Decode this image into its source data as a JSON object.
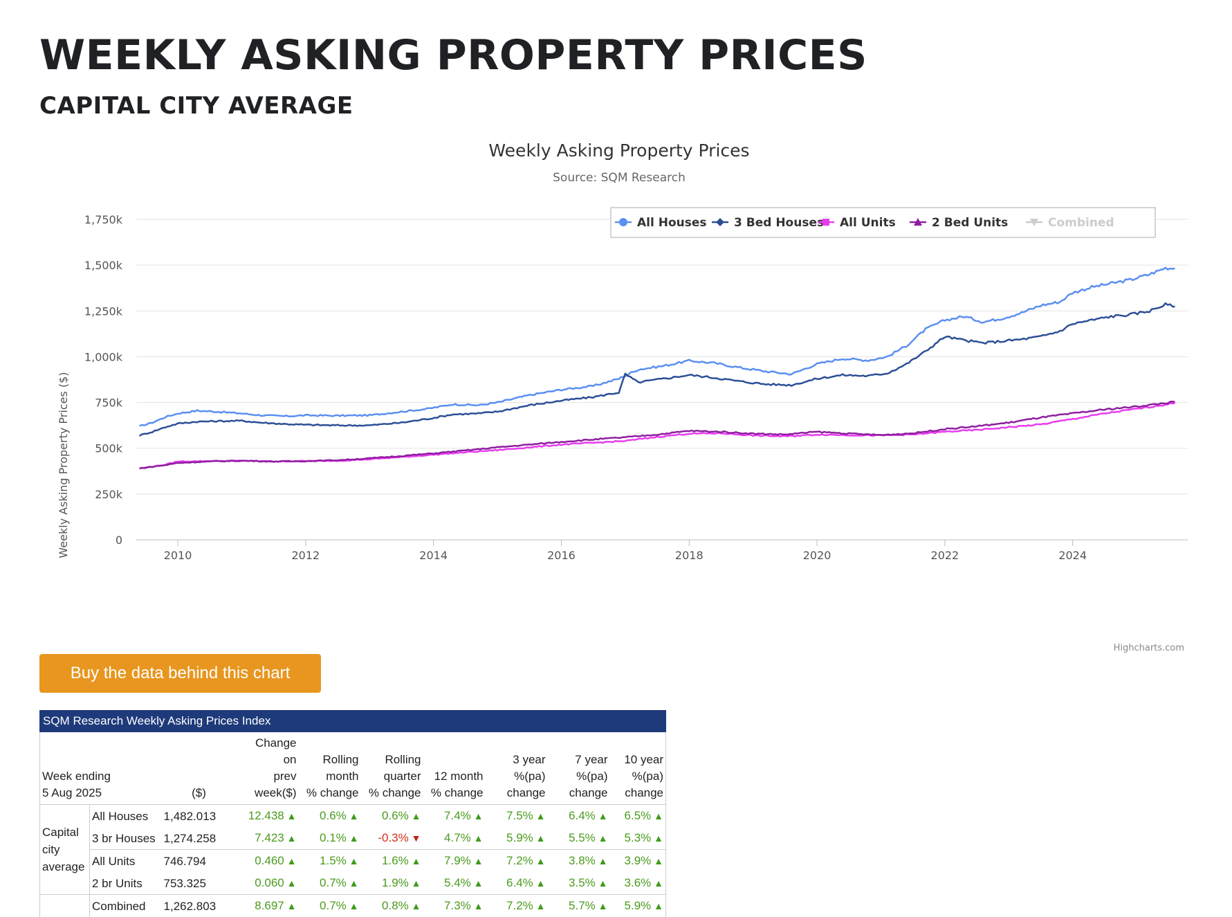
{
  "header": {
    "title": "WEEKLY ASKING PROPERTY PRICES",
    "subtitle": "CAPITAL CITY AVERAGE"
  },
  "chart_data": {
    "type": "line",
    "title": "Weekly Asking Property Prices",
    "subtitle": "Source: SQM Research",
    "ylabel": "Weekly Asking Property Prices ($)",
    "xlabel": "",
    "ylim": [
      0,
      1750000
    ],
    "xlim": [
      2009.35,
      2025.8
    ],
    "y_ticks": [
      0,
      250000,
      500000,
      750000,
      1000000,
      1250000,
      1500000,
      1750000
    ],
    "y_tick_labels": [
      "0",
      "250k",
      "500k",
      "750k",
      "1,000k",
      "1,250k",
      "1,500k",
      "1,750k"
    ],
    "x_ticks": [
      2010,
      2012,
      2014,
      2016,
      2018,
      2020,
      2022,
      2024
    ],
    "x_tick_labels": [
      "2010",
      "2012",
      "2014",
      "2016",
      "2018",
      "2020",
      "2022",
      "2024"
    ],
    "legend_position": "top-right",
    "grid": true,
    "credit": "Highcharts.com",
    "series": [
      {
        "name": "All Houses",
        "color": "#5b8ff0",
        "marker": "circle",
        "visible": true,
        "x": [
          2009.4,
          2009.6,
          2009.8,
          2010.0,
          2010.3,
          2010.6,
          2011.0,
          2011.3,
          2011.7,
          2012.0,
          2012.5,
          2013.0,
          2013.5,
          2013.9,
          2014.3,
          2014.7,
          2015.0,
          2015.5,
          2016.0,
          2016.5,
          2016.9,
          2017.2,
          2017.6,
          2018.0,
          2018.4,
          2018.8,
          2019.2,
          2019.6,
          2020.0,
          2020.4,
          2020.8,
          2021.1,
          2021.4,
          2021.7,
          2022.0,
          2022.3,
          2022.6,
          2022.9,
          2023.2,
          2023.5,
          2023.8,
          2024.0,
          2024.3,
          2024.6,
          2024.9,
          2025.2,
          2025.45,
          2025.6
        ],
        "values": [
          620000,
          640000,
          670000,
          690000,
          705000,
          700000,
          690000,
          680000,
          675000,
          680000,
          678000,
          680000,
          700000,
          715000,
          740000,
          735000,
          750000,
          790000,
          820000,
          840000,
          880000,
          930000,
          950000,
          978000,
          965000,
          940000,
          920000,
          905000,
          960000,
          990000,
          980000,
          1000000,
          1060000,
          1150000,
          1200000,
          1220000,
          1190000,
          1210000,
          1240000,
          1280000,
          1300000,
          1350000,
          1380000,
          1400000,
          1420000,
          1450000,
          1485000,
          1482013
        ]
      },
      {
        "name": "3 Bed Houses",
        "color": "#2c4f96",
        "marker": "diamond",
        "visible": true,
        "x": [
          2009.4,
          2009.6,
          2009.8,
          2010.0,
          2010.3,
          2010.6,
          2011.0,
          2011.3,
          2011.7,
          2012.0,
          2012.5,
          2013.0,
          2013.5,
          2013.9,
          2014.3,
          2014.7,
          2015.0,
          2015.5,
          2016.0,
          2016.5,
          2016.9,
          2017.0,
          2017.2,
          2017.6,
          2018.0,
          2018.4,
          2018.8,
          2019.2,
          2019.6,
          2020.0,
          2020.4,
          2020.8,
          2021.1,
          2021.4,
          2021.7,
          2022.0,
          2022.3,
          2022.6,
          2022.9,
          2023.2,
          2023.5,
          2023.8,
          2024.0,
          2024.3,
          2024.6,
          2024.9,
          2025.2,
          2025.45,
          2025.6
        ],
        "values": [
          570000,
          590000,
          615000,
          635000,
          645000,
          648000,
          650000,
          640000,
          632000,
          628000,
          625000,
          625000,
          640000,
          660000,
          685000,
          690000,
          700000,
          735000,
          760000,
          780000,
          805000,
          905000,
          860000,
          880000,
          900000,
          885000,
          865000,
          850000,
          845000,
          880000,
          900000,
          895000,
          910000,
          960000,
          1030000,
          1110000,
          1090000,
          1075000,
          1085000,
          1095000,
          1110000,
          1140000,
          1180000,
          1200000,
          1220000,
          1230000,
          1250000,
          1285000,
          1274258
        ]
      },
      {
        "name": "All Units",
        "color": "#e83cf0",
        "marker": "square",
        "visible": true,
        "x": [
          2009.4,
          2009.8,
          2010.0,
          2010.5,
          2011.0,
          2011.5,
          2012.0,
          2012.5,
          2013.0,
          2013.5,
          2014.0,
          2014.5,
          2015.0,
          2015.5,
          2016.0,
          2016.5,
          2017.0,
          2017.5,
          2018.0,
          2018.5,
          2019.0,
          2019.5,
          2020.0,
          2020.5,
          2021.0,
          2021.5,
          2022.0,
          2022.5,
          2023.0,
          2023.5,
          2024.0,
          2024.5,
          2025.0,
          2025.6
        ],
        "values": [
          390000,
          410000,
          428000,
          430000,
          432000,
          428000,
          430000,
          432000,
          440000,
          452000,
          465000,
          478000,
          490000,
          505000,
          520000,
          530000,
          540000,
          562000,
          580000,
          582000,
          570000,
          565000,
          575000,
          572000,
          570000,
          575000,
          590000,
          600000,
          615000,
          630000,
          660000,
          690000,
          715000,
          746794
        ]
      },
      {
        "name": "2 Bed Units",
        "color": "#8f1ea0",
        "marker": "triangle",
        "visible": true,
        "x": [
          2009.4,
          2009.8,
          2010.0,
          2010.5,
          2011.0,
          2011.5,
          2012.0,
          2012.5,
          2013.0,
          2013.5,
          2014.0,
          2014.5,
          2015.0,
          2015.5,
          2016.0,
          2016.5,
          2017.0,
          2017.5,
          2018.0,
          2018.5,
          2019.0,
          2019.5,
          2020.0,
          2020.5,
          2021.0,
          2021.5,
          2022.0,
          2022.5,
          2023.0,
          2023.5,
          2024.0,
          2024.5,
          2025.0,
          2025.6
        ],
        "values": [
          390000,
          408000,
          420000,
          428000,
          432000,
          428000,
          430000,
          435000,
          445000,
          458000,
          472000,
          488000,
          505000,
          520000,
          535000,
          548000,
          560000,
          575000,
          595000,
          590000,
          580000,
          575000,
          590000,
          580000,
          572000,
          582000,
          605000,
          620000,
          640000,
          668000,
          690000,
          712000,
          728000,
          753325
        ]
      },
      {
        "name": "Combined",
        "color": "#cccccc",
        "marker": "triangle-down",
        "visible": false,
        "x": [],
        "values": []
      }
    ]
  },
  "buy_button": {
    "label": "Buy the data behind this chart"
  },
  "table": {
    "caption": "SQM Research Weekly Asking Prices Index",
    "week_label": "Week ending",
    "week_date": "5 Aug 2025",
    "price_header": "($)",
    "headers": [
      [
        "Change",
        "on",
        "prev",
        "week($)"
      ],
      [
        "Rolling",
        "month",
        "% change"
      ],
      [
        "Rolling",
        "quarter",
        "% change"
      ],
      [
        "12 month",
        "% change"
      ],
      [
        "3 year",
        "%(pa)",
        "change"
      ],
      [
        "7 year",
        "%(pa)",
        "change"
      ],
      [
        "10 year",
        "%(pa)",
        "change"
      ]
    ],
    "region": [
      "Capital",
      "city",
      "average"
    ],
    "rows": [
      {
        "name": "All Houses",
        "price": "1,482.013",
        "cells": [
          [
            "12.438",
            "up"
          ],
          [
            "0.6%",
            "up"
          ],
          [
            "0.6%",
            "up"
          ],
          [
            "7.4%",
            "up"
          ],
          [
            "7.5%",
            "up"
          ],
          [
            "6.4%",
            "up"
          ],
          [
            "6.5%",
            "up"
          ]
        ]
      },
      {
        "name": "3 br Houses",
        "price": "1,274.258",
        "cells": [
          [
            "7.423",
            "up"
          ],
          [
            "0.1%",
            "up"
          ],
          [
            "-0.3%",
            "down"
          ],
          [
            "4.7%",
            "up"
          ],
          [
            "5.9%",
            "up"
          ],
          [
            "5.5%",
            "up"
          ],
          [
            "5.3%",
            "up"
          ]
        ]
      },
      {
        "name": "All Units",
        "price": "746.794",
        "cells": [
          [
            "0.460",
            "up"
          ],
          [
            "1.5%",
            "up"
          ],
          [
            "1.6%",
            "up"
          ],
          [
            "7.9%",
            "up"
          ],
          [
            "7.2%",
            "up"
          ],
          [
            "3.8%",
            "up"
          ],
          [
            "3.9%",
            "up"
          ]
        ]
      },
      {
        "name": "2 br Units",
        "price": "753.325",
        "cells": [
          [
            "0.060",
            "up"
          ],
          [
            "0.7%",
            "up"
          ],
          [
            "1.9%",
            "up"
          ],
          [
            "5.4%",
            "up"
          ],
          [
            "6.4%",
            "up"
          ],
          [
            "3.5%",
            "up"
          ],
          [
            "3.6%",
            "up"
          ]
        ]
      },
      {
        "name": "Combined",
        "price": "1,262.803",
        "cells": [
          [
            "8.697",
            "up"
          ],
          [
            "0.7%",
            "up"
          ],
          [
            "0.8%",
            "up"
          ],
          [
            "7.3%",
            "up"
          ],
          [
            "7.2%",
            "up"
          ],
          [
            "5.7%",
            "up"
          ],
          [
            "5.9%",
            "up"
          ]
        ]
      }
    ]
  }
}
